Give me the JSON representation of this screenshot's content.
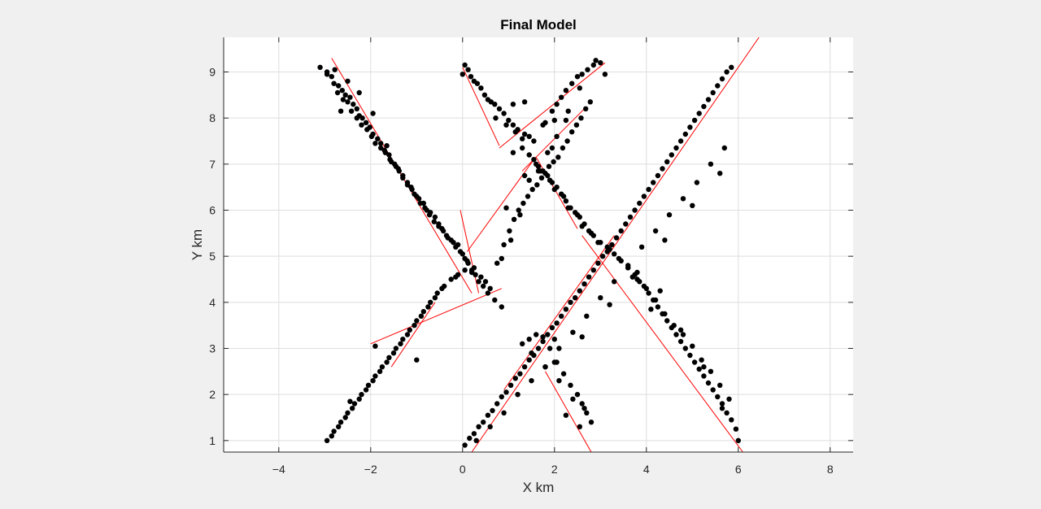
{
  "chart_data": {
    "type": "scatter",
    "title": "Final Model",
    "xlabel": "X km",
    "ylabel": "Y km",
    "xlim": [
      -5.2,
      8.5
    ],
    "ylim": [
      0.75,
      9.75
    ],
    "xticks": [
      -4,
      -2,
      0,
      2,
      4,
      6,
      8
    ],
    "yticks": [
      1,
      2,
      3,
      4,
      5,
      6,
      7,
      8,
      9
    ],
    "grid": true,
    "legend": "none",
    "colors": {
      "points": "#000000",
      "lines": "#ff0000",
      "grid": "#dedede",
      "axes_bg": "#ffffff",
      "figure_bg": "#f0f0f0"
    },
    "series": [
      {
        "mark": "point",
        "x": [
          -3.1,
          -2.95,
          -2.85,
          -2.78,
          -2.7,
          -2.62,
          -2.55,
          -2.5,
          -2.45,
          -2.38,
          -2.3,
          -2.25,
          -2.18,
          -2.1,
          -2.02,
          -1.95,
          -1.85,
          -1.78,
          -1.7,
          -1.6,
          -1.55,
          -1.45,
          -1.38,
          -1.3,
          -1.2,
          -1.12,
          -1.05,
          -0.95,
          -0.85,
          -0.78,
          -0.7,
          -0.6,
          -0.52,
          -0.45,
          -0.35,
          -0.25,
          -0.15,
          -0.05,
          0.05,
          0.12,
          0.2,
          0.28,
          0.35,
          0.45,
          -2.95,
          -2.8,
          -2.72,
          -2.6,
          -2.5,
          -2.42,
          -2.3,
          -2.2,
          -2.08,
          -1.98,
          -1.9,
          -1.78,
          -1.68,
          -1.58,
          -1.48,
          -1.4,
          -1.3,
          -1.2,
          -1.1,
          -1.0,
          -0.92,
          -0.82,
          -0.72,
          -0.62,
          -0.52,
          -0.42,
          -0.32,
          -0.2,
          -0.1,
          0.0,
          0.1,
          0.25,
          0.4,
          0.55,
          0.7,
          0.85,
          -1.95,
          -1.65,
          -2.65,
          -2.25,
          0.0,
          0.05,
          0.12,
          0.18,
          0.25,
          0.32,
          0.4,
          0.48,
          0.55,
          0.62,
          0.7,
          0.8,
          0.9,
          1.0,
          1.1,
          1.2,
          1.35,
          1.45,
          0.72,
          0.95,
          1.15,
          1.35,
          1.1,
          1.3,
          1.8,
          1.95,
          2.05,
          2.15,
          2.25,
          2.38,
          2.5,
          2.6,
          2.72,
          2.85,
          3.0,
          3.1,
          1.75,
          2.0,
          2.3,
          2.55,
          2.9,
          1.55,
          1.3,
          1.1,
          0.6,
          0.75,
          0.9,
          1.02,
          1.12,
          1.22,
          1.32,
          1.42,
          1.52,
          1.62,
          1.72,
          1.8,
          1.88,
          1.98,
          2.08,
          2.18,
          2.28,
          2.38,
          2.48,
          2.58,
          2.68,
          2.78,
          0.5,
          0.85,
          1.05,
          1.25,
          1.45,
          1.65,
          1.85,
          2.05,
          2.25,
          0.95,
          1.35,
          1.95,
          1.55,
          1.65,
          1.75,
          1.85,
          1.95,
          2.05,
          2.15,
          2.25,
          2.35,
          2.45,
          2.55,
          2.65,
          2.75,
          2.85,
          2.95,
          1.6,
          1.9,
          2.2,
          2.5,
          2.8,
          1.45,
          1.7,
          2.0,
          2.3,
          2.6,
          3.0,
          3.15,
          3.3,
          3.45,
          3.6,
          3.75,
          3.85,
          3.95,
          4.05,
          4.15,
          4.25,
          4.35,
          4.45,
          4.55,
          4.65,
          4.75,
          4.85,
          4.95,
          5.05,
          5.15,
          5.25,
          5.35,
          5.45,
          5.55,
          5.65,
          5.75,
          5.85,
          5.95,
          6.0,
          3.2,
          3.4,
          3.6,
          3.8,
          4.0,
          4.2,
          4.4,
          4.6,
          4.8,
          5.0,
          5.2,
          5.4,
          5.6,
          5.8,
          4.3,
          4.75,
          5.25,
          5.65,
          3.7,
          4.1,
          0.05,
          0.15,
          0.25,
          0.35,
          0.45,
          0.55,
          0.65,
          0.75,
          0.85,
          0.95,
          1.05,
          1.15,
          1.25,
          1.35,
          1.45,
          1.55,
          1.65,
          1.75,
          1.85,
          1.95,
          2.05,
          2.15,
          2.25,
          2.35,
          2.45,
          2.55,
          2.65,
          2.75,
          2.85,
          2.95,
          3.05,
          3.15,
          3.25,
          3.35,
          3.45,
          3.55,
          3.65,
          3.75,
          3.85,
          3.95,
          4.05,
          4.15,
          4.25,
          4.35,
          4.45,
          4.55,
          4.65,
          4.75,
          4.85,
          4.95,
          5.05,
          5.15,
          5.25,
          5.35,
          5.45,
          5.55,
          5.65,
          5.75,
          5.85,
          0.3,
          0.6,
          0.9,
          1.2,
          1.5,
          1.8,
          2.1,
          2.4,
          2.7,
          3.0,
          3.3,
          3.6,
          3.9,
          4.2,
          4.5,
          4.8,
          5.1,
          5.4,
          5.7,
          2.0,
          2.6,
          3.2,
          3.8,
          4.4,
          5.0,
          5.6,
          1.3,
          1.45,
          1.6,
          1.75,
          1.9,
          2.05,
          2.2,
          2.35,
          2.5,
          2.6,
          2.7,
          2.8,
          1.5,
          1.8,
          2.1,
          2.4,
          2.65,
          2.25,
          2.55,
          2.0,
          -2.95,
          -2.8,
          -2.65,
          -2.5,
          -2.35,
          -2.2,
          -2.05,
          -1.9,
          -1.75,
          -1.6,
          -1.45,
          -1.3,
          -1.15,
          -1.0,
          -0.85,
          -0.7,
          -0.55,
          -0.4,
          -0.25,
          -0.1,
          0.05,
          0.2,
          -2.85,
          -2.55,
          -2.25,
          -1.95,
          -1.65,
          -1.35,
          -1.05,
          -0.75,
          -0.45,
          -0.15,
          -2.7,
          -2.4,
          -2.1,
          -1.8,
          -1.5,
          -1.2,
          -0.9,
          -0.6,
          -1.0,
          -1.9,
          -2.45
        ],
        "y": [
          9.1,
          9.0,
          8.9,
          9.05,
          8.7,
          8.6,
          8.5,
          8.8,
          8.45,
          8.3,
          8.2,
          8.05,
          8.0,
          7.9,
          7.8,
          7.65,
          7.55,
          7.45,
          7.3,
          7.2,
          7.05,
          6.95,
          6.85,
          6.75,
          6.6,
          6.5,
          6.35,
          6.25,
          6.15,
          6.0,
          5.95,
          5.85,
          5.7,
          5.6,
          5.45,
          5.35,
          5.2,
          5.1,
          4.95,
          4.85,
          4.7,
          4.6,
          4.45,
          4.35,
          8.95,
          8.75,
          8.55,
          8.4,
          8.35,
          8.15,
          8.0,
          7.85,
          7.75,
          7.6,
          7.45,
          7.35,
          7.25,
          7.1,
          7.0,
          6.9,
          6.7,
          6.55,
          6.45,
          6.3,
          6.15,
          6.05,
          5.9,
          5.75,
          5.65,
          5.55,
          5.4,
          5.3,
          5.25,
          5.05,
          4.9,
          4.75,
          4.55,
          4.2,
          4.05,
          3.9,
          8.1,
          7.4,
          8.15,
          8.55,
          8.95,
          9.15,
          9.05,
          8.9,
          8.8,
          8.75,
          8.65,
          8.5,
          8.4,
          8.35,
          8.3,
          8.2,
          8.1,
          7.95,
          7.85,
          7.75,
          7.65,
          7.6,
          8.0,
          7.85,
          7.7,
          8.35,
          8.3,
          7.55,
          7.9,
          8.15,
          8.3,
          8.45,
          8.6,
          8.75,
          8.9,
          8.95,
          9.05,
          9.15,
          9.2,
          8.95,
          7.85,
          7.95,
          8.15,
          8.65,
          9.25,
          7.5,
          7.35,
          7.25,
          4.3,
          4.85,
          5.25,
          5.55,
          5.8,
          6.0,
          6.15,
          6.3,
          6.45,
          6.55,
          6.7,
          6.8,
          6.95,
          7.05,
          7.15,
          7.35,
          7.5,
          7.7,
          7.85,
          8.0,
          8.2,
          8.35,
          4.45,
          4.95,
          5.35,
          5.9,
          6.65,
          6.85,
          7.25,
          7.6,
          7.95,
          6.05,
          6.75,
          7.35,
          7.1,
          6.95,
          6.85,
          6.75,
          6.6,
          6.5,
          6.35,
          6.2,
          6.05,
          5.95,
          5.85,
          5.7,
          5.55,
          5.45,
          5.3,
          7.0,
          6.65,
          6.3,
          5.9,
          5.5,
          7.2,
          6.85,
          6.45,
          6.05,
          5.65,
          5.3,
          5.2,
          5.05,
          4.9,
          4.75,
          4.6,
          4.45,
          4.35,
          4.2,
          4.05,
          3.9,
          3.75,
          3.6,
          3.45,
          3.3,
          3.15,
          3.0,
          2.85,
          2.7,
          2.55,
          2.4,
          2.25,
          2.1,
          1.95,
          1.8,
          1.6,
          1.45,
          1.25,
          1.0,
          5.15,
          4.95,
          4.75,
          4.5,
          4.3,
          4.05,
          3.75,
          3.5,
          3.3,
          3.05,
          2.75,
          2.5,
          2.2,
          1.9,
          4.25,
          3.4,
          2.6,
          1.7,
          4.55,
          3.85,
          0.9,
          1.05,
          1.15,
          1.3,
          1.4,
          1.55,
          1.65,
          1.8,
          1.95,
          2.05,
          2.2,
          2.35,
          2.45,
          2.6,
          2.75,
          2.85,
          3.0,
          3.15,
          3.3,
          3.45,
          3.55,
          3.7,
          3.85,
          4.0,
          4.1,
          4.25,
          4.4,
          4.55,
          4.7,
          4.85,
          5.0,
          5.1,
          5.25,
          5.4,
          5.55,
          5.7,
          5.85,
          6.0,
          6.15,
          6.3,
          6.45,
          6.6,
          6.75,
          6.9,
          7.05,
          7.2,
          7.35,
          7.5,
          7.65,
          7.8,
          7.95,
          8.1,
          8.25,
          8.4,
          8.55,
          8.7,
          8.85,
          9.0,
          9.1,
          1.0,
          1.3,
          1.6,
          2.0,
          2.3,
          2.6,
          3.0,
          3.35,
          3.7,
          4.1,
          4.45,
          4.8,
          5.2,
          5.55,
          5.9,
          6.25,
          6.6,
          7.0,
          7.35,
          2.7,
          3.25,
          3.95,
          4.65,
          5.35,
          6.1,
          6.8,
          3.1,
          3.2,
          3.3,
          3.25,
          3.0,
          2.7,
          2.45,
          2.2,
          2.0,
          1.8,
          1.6,
          1.4,
          2.9,
          2.6,
          2.3,
          1.9,
          1.7,
          1.55,
          1.3,
          3.2,
          1.0,
          1.2,
          1.4,
          1.6,
          1.8,
          2.0,
          2.2,
          2.4,
          2.6,
          2.8,
          3.0,
          3.2,
          3.4,
          3.6,
          3.8,
          4.0,
          4.2,
          4.35,
          4.5,
          4.6,
          4.7,
          4.65,
          1.1,
          1.5,
          1.9,
          2.3,
          2.7,
          3.1,
          3.5,
          3.9,
          4.3,
          4.55,
          1.3,
          1.7,
          2.1,
          2.5,
          2.9,
          3.3,
          3.7,
          4.1,
          2.75,
          3.05,
          1.85
        ]
      },
      {
        "mark": "line",
        "segments": [
          [
            [
              -2.85,
              9.3
            ],
            [
              0.2,
              4.2
            ]
          ],
          [
            [
              -0.05,
              6.0
            ],
            [
              0.35,
              4.2
            ]
          ],
          [
            [
              -2.0,
              3.1
            ],
            [
              0.85,
              4.3
            ]
          ],
          [
            [
              0.0,
              9.1
            ],
            [
              0.8,
              7.4
            ]
          ],
          [
            [
              0.8,
              7.35
            ],
            [
              3.1,
              9.2
            ]
          ],
          [
            [
              1.3,
              6.85
            ],
            [
              2.65,
              8.2
            ]
          ],
          [
            [
              0.1,
              5.1
            ],
            [
              1.55,
              7.1
            ]
          ],
          [
            [
              1.6,
              7.15
            ],
            [
              2.5,
              5.6
            ]
          ],
          [
            [
              2.6,
              5.45
            ],
            [
              6.1,
              0.75
            ]
          ],
          [
            [
              0.2,
              0.75
            ],
            [
              6.45,
              9.75
            ]
          ],
          [
            [
              0.9,
              2.1
            ],
            [
              3.3,
              5.45
            ]
          ],
          [
            [
              1.8,
              2.5
            ],
            [
              2.8,
              0.75
            ]
          ],
          [
            [
              -1.55,
              2.6
            ],
            [
              -0.6,
              4.0
            ]
          ]
        ]
      }
    ]
  }
}
